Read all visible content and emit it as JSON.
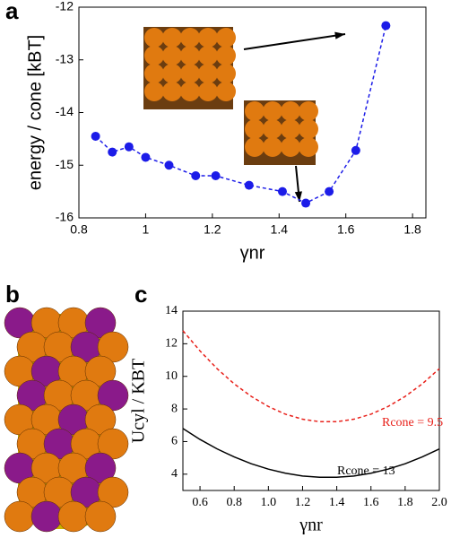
{
  "chart_data": [
    {
      "type": "line",
      "panel": "a",
      "xlabel": "γnr",
      "ylabel": "energy / cone [kBT]",
      "x": [
        0.85,
        0.9,
        0.95,
        1.0,
        1.07,
        1.15,
        1.21,
        1.31,
        1.41,
        1.48,
        1.55,
        1.63,
        1.72
      ],
      "series": [
        {
          "color": "#1c1ce8",
          "linestyle": "dashed",
          "markers": true,
          "values": [
            -14.45,
            -14.75,
            -14.65,
            -14.85,
            -15.0,
            -15.2,
            -15.2,
            -15.38,
            -15.5,
            -15.72,
            -15.5,
            -14.72,
            -12.35
          ]
        }
      ],
      "xlim": [
        0.8,
        1.84
      ],
      "xticks": [
        0.8,
        1,
        1.2,
        1.4,
        1.6,
        1.8
      ],
      "ylim": [
        -16,
        -12
      ],
      "yticks": [
        -16,
        -15,
        -14,
        -13,
        -12
      ]
    },
    {
      "type": "line",
      "panel": "c",
      "xlabel": "γnr",
      "ylabel": "Ucyl / KBT",
      "x": [
        0.5,
        0.6,
        0.7,
        0.8,
        0.9,
        1.0,
        1.1,
        1.2,
        1.3,
        1.4,
        1.5,
        1.6,
        1.7,
        1.8,
        1.9,
        2.0
      ],
      "series": [
        {
          "color": "#e8201a",
          "linestyle": "dashed",
          "markers": false,
          "values": [
            12.8,
            11.56,
            10.47,
            9.54,
            8.77,
            8.15,
            7.68,
            7.37,
            7.22,
            7.22,
            7.37,
            7.68,
            8.15,
            8.77,
            9.54,
            10.47
          ]
        },
        {
          "color": "#000000",
          "linestyle": "solid",
          "markers": false,
          "values": [
            6.8,
            6.13,
            5.55,
            5.06,
            4.64,
            4.31,
            4.06,
            3.89,
            3.81,
            3.81,
            3.89,
            4.06,
            4.31,
            4.64,
            5.06,
            5.55
          ]
        }
      ],
      "annotations": [
        "Rcone = 9.5",
        "Rcone = 13"
      ],
      "xlim": [
        0.5,
        2.0
      ],
      "xticks": [
        0.6,
        0.8,
        {
          "value": 1,
          "label": "1.0"
        },
        1.2,
        1.4,
        1.6,
        1.8,
        {
          "value": 2,
          "label": "2.0"
        }
      ],
      "ylim": [
        3,
        14
      ],
      "yticks": [
        4,
        6,
        8,
        10,
        12,
        14
      ]
    }
  ],
  "panel_b": {
    "label": "b"
  }
}
